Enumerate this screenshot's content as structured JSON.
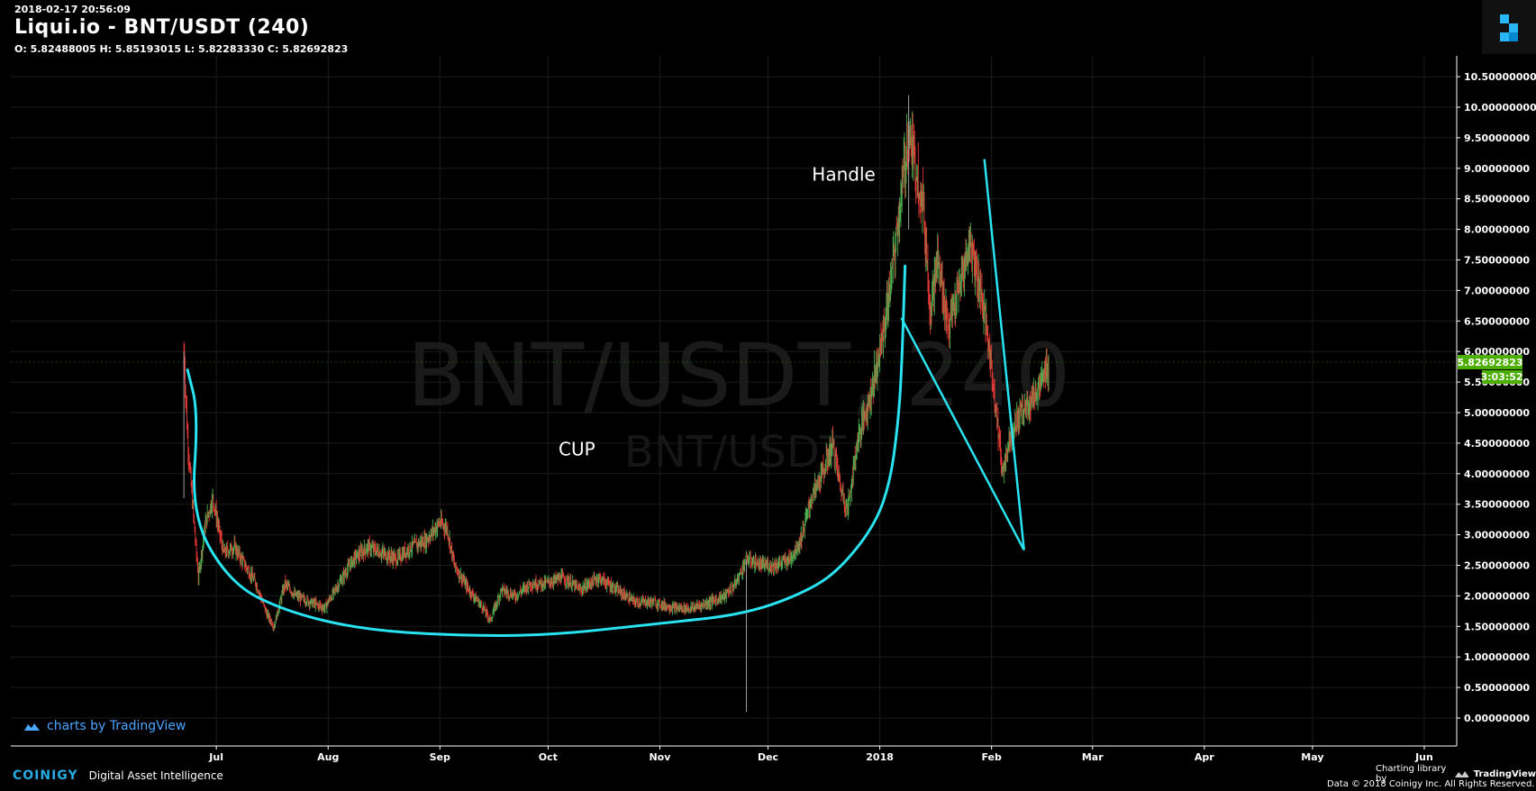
{
  "header": {
    "timestamp": "2018-02-17 20:56:09",
    "title": "Liqui.io - BNT/USDT (240)",
    "ohlc": "O: 5.82488005 H: 5.85193015 L: 5.82283330 C: 5.82692823"
  },
  "watermark": {
    "main": "BNT/USDT, 240",
    "sub": "BNT/USDT"
  },
  "annotations": {
    "cup": "CUP",
    "handle": "Handle"
  },
  "price_badge": {
    "value": "5.82692823",
    "countdown": "3:03:52",
    "color": "#4caf00"
  },
  "colors": {
    "background": "#000000",
    "grid": "#1c1c1c",
    "up": "#4caf50",
    "down": "#e53935",
    "drawing": "#29e3f0"
  },
  "branding": {
    "tv_badge": "charts by TradingView",
    "coinigy_name": "COINIGY",
    "coinigy_tagline": "Digital Asset Intelligence",
    "charting_library_by": "Charting library by",
    "tradingview": "TradingView",
    "data_credit": "Data © 2018   Coinigy Inc. All Rights Reserved."
  },
  "chart_data": {
    "type": "candlestick",
    "title": "Liqui.io - BNT/USDT (240)",
    "xlabel": "",
    "ylabel": "",
    "ylim": [
      0,
      10.5
    ],
    "yticks": [
      "0.00000000",
      "0.50000000",
      "1.00000000",
      "1.50000000",
      "2.00000000",
      "2.50000000",
      "3.00000000",
      "3.50000000",
      "4.00000000",
      "4.50000000",
      "5.00000000",
      "5.50000000",
      "6.00000000",
      "6.50000000",
      "7.00000000",
      "7.50000000",
      "8.00000000",
      "8.50000000",
      "9.00000000",
      "9.50000000",
      "10.00000000",
      "10.50000000"
    ],
    "xlim": [
      "2017-05-05",
      "2018-06-10"
    ],
    "xticks": [
      {
        "label": "Jul",
        "date": "2017-07-01"
      },
      {
        "label": "Aug",
        "date": "2017-08-01"
      },
      {
        "label": "Sep",
        "date": "2017-09-01"
      },
      {
        "label": "Oct",
        "date": "2017-10-01"
      },
      {
        "label": "Nov",
        "date": "2017-11-01"
      },
      {
        "label": "Dec",
        "date": "2017-12-01"
      },
      {
        "label": "2018",
        "date": "2018-01-01"
      },
      {
        "label": "Feb",
        "date": "2018-02-01"
      },
      {
        "label": "Mar",
        "date": "2018-03-01"
      },
      {
        "label": "Apr",
        "date": "2018-04-01"
      },
      {
        "label": "May",
        "date": "2018-05-01"
      },
      {
        "label": "Jun",
        "date": "2018-06-01"
      }
    ],
    "grid": true,
    "last_price": 5.82692823,
    "price_path": [
      [
        "2017-06-22",
        6.0
      ],
      [
        "2017-06-23",
        4.6
      ],
      [
        "2017-06-24",
        3.8
      ],
      [
        "2017-06-26",
        2.3
      ],
      [
        "2017-06-28",
        3.2
      ],
      [
        "2017-06-30",
        3.6
      ],
      [
        "2017-07-03",
        2.7
      ],
      [
        "2017-07-06",
        2.8
      ],
      [
        "2017-07-09",
        2.5
      ],
      [
        "2017-07-12",
        2.2
      ],
      [
        "2017-07-15",
        1.7
      ],
      [
        "2017-07-17",
        1.5
      ],
      [
        "2017-07-20",
        2.2
      ],
      [
        "2017-07-23",
        2.0
      ],
      [
        "2017-07-27",
        1.9
      ],
      [
        "2017-07-31",
        1.8
      ],
      [
        "2017-08-04",
        2.2
      ],
      [
        "2017-08-08",
        2.6
      ],
      [
        "2017-08-12",
        2.8
      ],
      [
        "2017-08-16",
        2.7
      ],
      [
        "2017-08-20",
        2.6
      ],
      [
        "2017-08-24",
        2.8
      ],
      [
        "2017-08-28",
        2.9
      ],
      [
        "2017-09-01",
        3.2
      ],
      [
        "2017-09-03",
        3.1
      ],
      [
        "2017-09-05",
        2.5
      ],
      [
        "2017-09-09",
        2.1
      ],
      [
        "2017-09-13",
        1.8
      ],
      [
        "2017-09-15",
        1.6
      ],
      [
        "2017-09-18",
        2.1
      ],
      [
        "2017-09-22",
        2.0
      ],
      [
        "2017-09-26",
        2.2
      ],
      [
        "2017-09-30",
        2.2
      ],
      [
        "2017-10-05",
        2.3
      ],
      [
        "2017-10-10",
        2.1
      ],
      [
        "2017-10-15",
        2.3
      ],
      [
        "2017-10-20",
        2.1
      ],
      [
        "2017-10-25",
        1.9
      ],
      [
        "2017-10-30",
        1.9
      ],
      [
        "2017-11-05",
        1.8
      ],
      [
        "2017-11-10",
        1.8
      ],
      [
        "2017-11-15",
        1.9
      ],
      [
        "2017-11-19",
        2.0
      ],
      [
        "2017-11-22",
        2.2
      ],
      [
        "2017-11-25",
        2.6
      ],
      [
        "2017-11-29",
        2.5
      ],
      [
        "2017-12-03",
        2.5
      ],
      [
        "2017-12-07",
        2.6
      ],
      [
        "2017-12-10",
        2.9
      ],
      [
        "2017-12-13",
        3.6
      ],
      [
        "2017-12-16",
        4.0
      ],
      [
        "2017-12-19",
        4.5
      ],
      [
        "2017-12-21",
        3.8
      ],
      [
        "2017-12-23",
        3.4
      ],
      [
        "2017-12-26",
        4.6
      ],
      [
        "2017-12-29",
        5.2
      ],
      [
        "2018-01-01",
        6.0
      ],
      [
        "2018-01-03",
        6.7
      ],
      [
        "2018-01-05",
        7.6
      ],
      [
        "2018-01-07",
        8.6
      ],
      [
        "2018-01-09",
        9.6
      ],
      [
        "2018-01-11",
        9.0
      ],
      [
        "2018-01-13",
        8.4
      ],
      [
        "2018-01-15",
        6.7
      ],
      [
        "2018-01-17",
        7.5
      ],
      [
        "2018-01-20",
        6.4
      ],
      [
        "2018-01-23",
        7.0
      ],
      [
        "2018-01-26",
        7.8
      ],
      [
        "2018-01-29",
        7.0
      ],
      [
        "2018-01-31",
        6.2
      ],
      [
        "2018-02-02",
        5.2
      ],
      [
        "2018-02-04",
        4.0
      ],
      [
        "2018-02-06",
        4.6
      ],
      [
        "2018-02-09",
        5.0
      ],
      [
        "2018-02-12",
        5.2
      ],
      [
        "2018-02-15",
        5.5
      ],
      [
        "2018-02-17",
        5.83
      ]
    ],
    "spikes": [
      {
        "date": "2017-11-25",
        "high": 2.6,
        "low": 0.1
      },
      {
        "date": "2017-06-22",
        "high": 6.0,
        "low": 3.6
      },
      {
        "date": "2018-01-09",
        "high": 10.2,
        "low": 8.0
      }
    ],
    "drawings": {
      "cup": [
        [
          "2017-06-23",
          5.7
        ],
        [
          "2017-06-26",
          5.0
        ],
        [
          "2017-06-24",
          3.3
        ],
        [
          "2017-07-05",
          2.2
        ],
        [
          "2017-07-20",
          1.75
        ],
        [
          "2017-08-10",
          1.45
        ],
        [
          "2017-09-05",
          1.35
        ],
        [
          "2017-10-01",
          1.35
        ],
        [
          "2017-11-01",
          1.55
        ],
        [
          "2017-11-25",
          1.7
        ],
        [
          "2017-12-13",
          2.1
        ],
        [
          "2017-12-22",
          2.5
        ],
        [
          "2017-12-31",
          3.2
        ],
        [
          "2018-01-04",
          3.9
        ],
        [
          "2018-01-06",
          4.8
        ],
        [
          "2018-01-07",
          5.6
        ],
        [
          "2018-01-08",
          7.4
        ]
      ],
      "handle_upper": [
        [
          "2018-01-30",
          9.15
        ],
        [
          "2018-02-10",
          2.75
        ]
      ],
      "handle_lower": [
        [
          "2018-01-07",
          6.55
        ],
        [
          "2018-02-10",
          2.75
        ]
      ],
      "cup_label_at": [
        "2017-10-09",
        4.3
      ],
      "handle_label_at": [
        "2017-12-22",
        8.8
      ]
    }
  }
}
